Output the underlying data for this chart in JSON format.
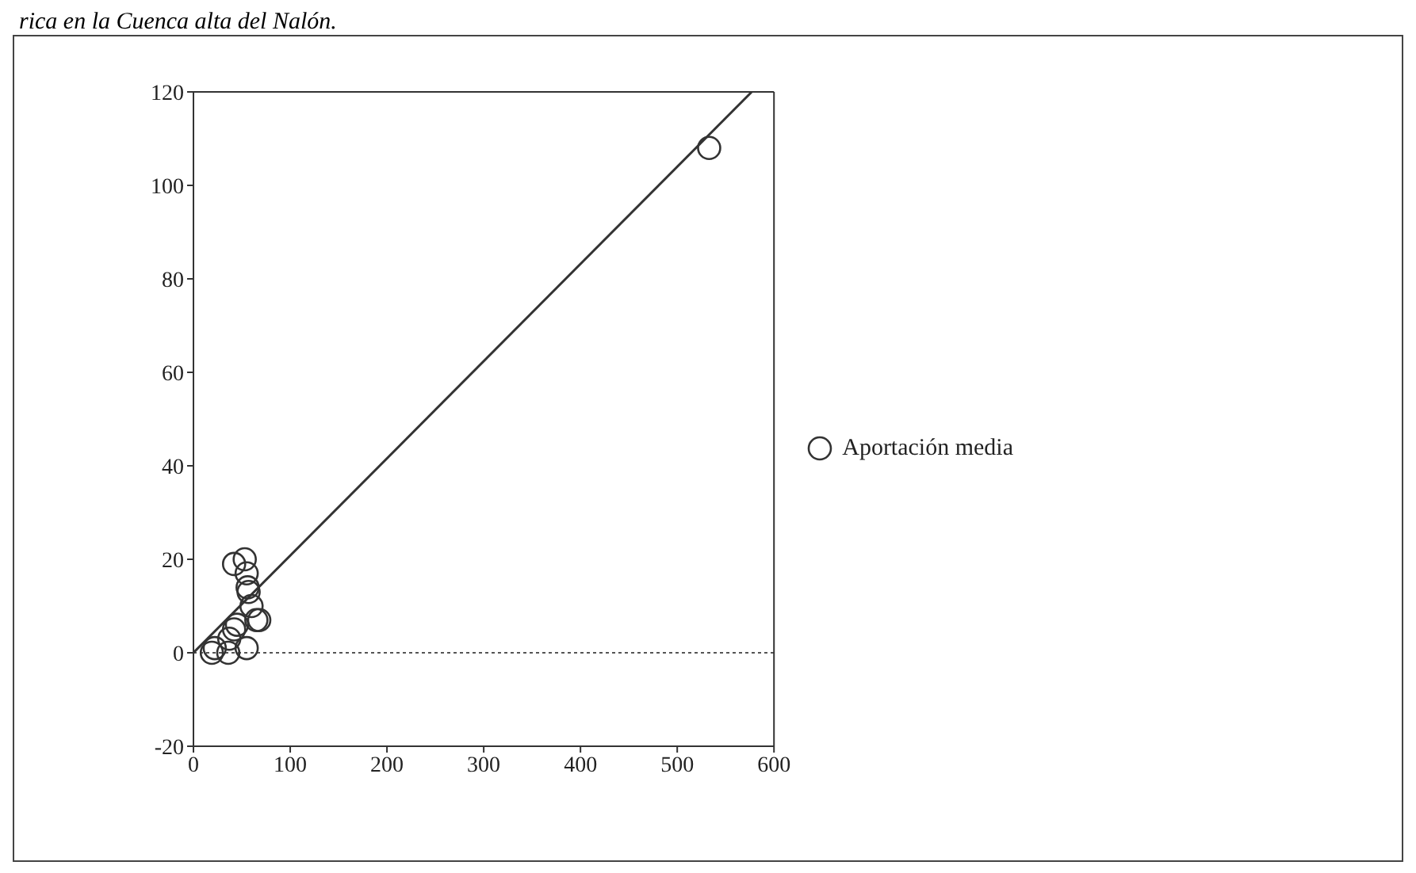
{
  "chart_data": {
    "type": "scatter",
    "annotations": [
      "rica en la Cuenca alta del Nalón."
    ],
    "x": [
      19,
      22,
      36,
      55,
      37,
      42,
      45,
      42,
      53,
      55,
      56,
      57,
      60,
      65,
      68,
      533
    ],
    "series": [
      {
        "name": "Aportación media",
        "color": "#333333",
        "marker": "circle",
        "values": [
          0,
          1,
          0,
          1,
          3,
          5,
          6,
          19,
          20,
          17,
          14,
          13,
          10,
          7,
          7,
          108
        ]
      },
      {
        "type": "line",
        "color": "#333333",
        "x": [
          0,
          577
        ],
        "values": [
          0,
          120
        ]
      }
    ],
    "xlim": [
      0,
      600
    ],
    "xticks": [
      0,
      100,
      200,
      300,
      400,
      500,
      600
    ],
    "ylim": [
      -20,
      120
    ],
    "yticks": [
      -20,
      0,
      20,
      40,
      60,
      80,
      100,
      120
    ],
    "ref_lines": [
      {
        "axis": "y",
        "value": 0,
        "color": "#555555",
        "line_style": "dotted"
      }
    ],
    "grid": false,
    "legend": "right"
  }
}
